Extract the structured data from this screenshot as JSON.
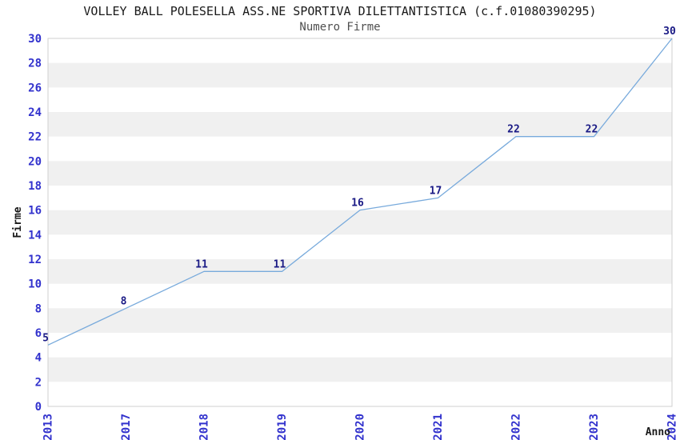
{
  "chart_data": {
    "type": "line",
    "title": "VOLLEY BALL POLESELLA ASS.NE SPORTIVA DILETTANTISTICA (c.f.01080390295)",
    "subtitle": "Numero Firme",
    "xlabel": "Anno",
    "ylabel": "Firme",
    "x": [
      "2013",
      "2017",
      "2018",
      "2019",
      "2020",
      "2021",
      "2022",
      "2023",
      "2024"
    ],
    "values": [
      5,
      8,
      11,
      11,
      16,
      17,
      22,
      22,
      30
    ],
    "point_labels": [
      "5",
      "8",
      "11",
      "11",
      "16",
      "17",
      "22",
      "22",
      "30"
    ],
    "ylim": [
      0,
      30
    ],
    "ytick_step": 2,
    "x_spacing": "categorical-even",
    "grid": "alternating-horizontal-bands",
    "legend": "none",
    "colors": {
      "line": "#78aadc",
      "axis_tick_labels": "#3232cd",
      "point_labels": "#1a1a85",
      "band": "#f0f0f0",
      "plot_border": "#cfcfcf",
      "title": "#1a1a1a",
      "subtitle": "#4f4f4f",
      "axis_titles": "#1a1a1a",
      "background": "#ffffff"
    }
  }
}
